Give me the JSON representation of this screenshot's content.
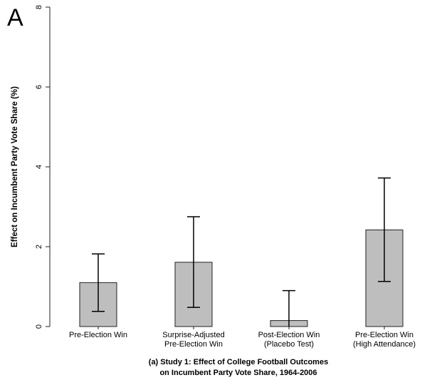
{
  "panel_label": "A",
  "caption": [
    "(a) Study 1: Effect of College Football Outcomes",
    "on Incumbent Party Vote Share, 1964-2006"
  ],
  "chart_data": {
    "type": "bar",
    "title": "",
    "ylabel": "Effect on Incumbent Party Vote Share (%)",
    "xlabel": "",
    "ylim": [
      0,
      8
    ],
    "yticks": [
      0,
      2,
      4,
      6,
      8
    ],
    "categories": [
      [
        "Pre-Election Win"
      ],
      [
        "Surprise-Adjusted",
        "Pre-Election Win"
      ],
      [
        "Post-Election Win",
        "(Placebo Test)"
      ],
      [
        "Pre-Election Win",
        "(High Attendance)"
      ]
    ],
    "values": [
      1.1,
      1.61,
      0.15,
      2.42
    ],
    "error_low": [
      0.38,
      0.48,
      -0.6,
      1.13
    ],
    "error_high": [
      1.82,
      2.75,
      0.9,
      3.72
    ],
    "grid": false,
    "bar_color": "#bebebe"
  }
}
